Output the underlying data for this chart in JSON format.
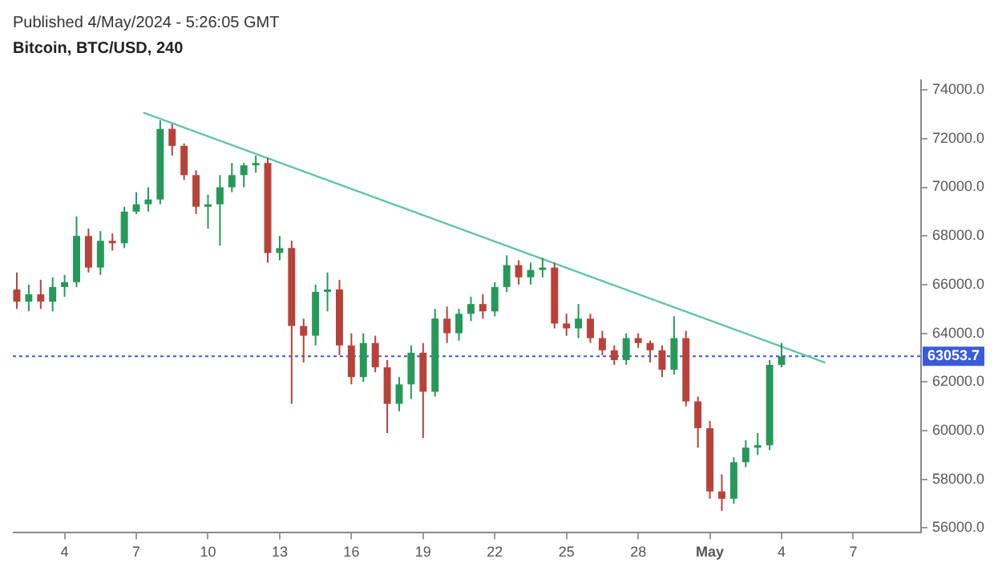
{
  "chart_data": {
    "type": "candlestick",
    "title": "Published 4/May/2024 - 5:26:05 GMT",
    "subtitle": "Bitcoin, BTC/USD, 240",
    "x": [
      "2024-04-02T00:00",
      "2024-04-02T12:00",
      "2024-04-03T00:00",
      "2024-04-03T12:00",
      "2024-04-04T00:00",
      "2024-04-04T12:00",
      "2024-04-05T00:00",
      "2024-04-05T12:00",
      "2024-04-06T00:00",
      "2024-04-06T12:00",
      "2024-04-07T00:00",
      "2024-04-07T12:00",
      "2024-04-08T00:00",
      "2024-04-08T12:00",
      "2024-04-09T00:00",
      "2024-04-09T12:00",
      "2024-04-10T00:00",
      "2024-04-10T12:00",
      "2024-04-11T00:00",
      "2024-04-11T12:00",
      "2024-04-12T00:00",
      "2024-04-12T12:00",
      "2024-04-13T00:00",
      "2024-04-13T12:00",
      "2024-04-14T00:00",
      "2024-04-14T12:00",
      "2024-04-15T00:00",
      "2024-04-15T12:00",
      "2024-04-16T00:00",
      "2024-04-16T12:00",
      "2024-04-17T00:00",
      "2024-04-17T12:00",
      "2024-04-18T00:00",
      "2024-04-18T12:00",
      "2024-04-19T00:00",
      "2024-04-19T12:00",
      "2024-04-20T00:00",
      "2024-04-20T12:00",
      "2024-04-21T00:00",
      "2024-04-21T12:00",
      "2024-04-22T00:00",
      "2024-04-22T12:00",
      "2024-04-23T00:00",
      "2024-04-23T12:00",
      "2024-04-24T00:00",
      "2024-04-24T12:00",
      "2024-04-25T00:00",
      "2024-04-25T12:00",
      "2024-04-26T00:00",
      "2024-04-26T12:00",
      "2024-04-27T00:00",
      "2024-04-27T12:00",
      "2024-04-28T00:00",
      "2024-04-28T12:00",
      "2024-04-29T00:00",
      "2024-04-29T12:00",
      "2024-04-30T00:00",
      "2024-04-30T12:00",
      "2024-05-01T00:00",
      "2024-05-01T12:00",
      "2024-05-02T00:00",
      "2024-05-02T12:00",
      "2024-05-03T00:00",
      "2024-05-03T12:00",
      "2024-05-04T00:00"
    ],
    "ohlc": [
      [
        65800,
        66500,
        65000,
        65300
      ],
      [
        65300,
        66000,
        64900,
        65600
      ],
      [
        65600,
        66200,
        65000,
        65300
      ],
      [
        65300,
        66300,
        64900,
        65900
      ],
      [
        65900,
        66400,
        65500,
        66100
      ],
      [
        66100,
        68800,
        65900,
        68000
      ],
      [
        68000,
        68300,
        66500,
        66700
      ],
      [
        66700,
        68200,
        66400,
        67800
      ],
      [
        67800,
        68100,
        67400,
        67700
      ],
      [
        67700,
        69200,
        67500,
        69000
      ],
      [
        69000,
        69800,
        68900,
        69300
      ],
      [
        69300,
        70000,
        69000,
        69500
      ],
      [
        69500,
        72750,
        69300,
        72400
      ],
      [
        72400,
        72600,
        71300,
        71700
      ],
      [
        71700,
        71800,
        70300,
        70500
      ],
      [
        70500,
        70700,
        68900,
        69200
      ],
      [
        69200,
        69700,
        68300,
        69300
      ],
      [
        69300,
        70500,
        67600,
        70000
      ],
      [
        70000,
        71000,
        69800,
        70500
      ],
      [
        70500,
        71000,
        70000,
        70900
      ],
      [
        70900,
        71300,
        70600,
        71000
      ],
      [
        71000,
        71200,
        66900,
        67300
      ],
      [
        67300,
        68000,
        67000,
        67500
      ],
      [
        67500,
        67800,
        61100,
        64300
      ],
      [
        64300,
        64600,
        62800,
        63900
      ],
      [
        63900,
        66000,
        63500,
        65700
      ],
      [
        65700,
        66500,
        64900,
        65800
      ],
      [
        65800,
        66200,
        63100,
        63500
      ],
      [
        63500,
        64000,
        61900,
        62200
      ],
      [
        62200,
        64000,
        62000,
        63600
      ],
      [
        63600,
        63900,
        62400,
        62600
      ],
      [
        62600,
        62900,
        59900,
        61100
      ],
      [
        61100,
        62200,
        60800,
        61900
      ],
      [
        61900,
        63500,
        61300,
        63200
      ],
      [
        63200,
        63600,
        59700,
        61600
      ],
      [
        61600,
        65000,
        61400,
        64600
      ],
      [
        64600,
        65100,
        63600,
        64000
      ],
      [
        64000,
        65000,
        63700,
        64800
      ],
      [
        64800,
        65500,
        64500,
        65200
      ],
      [
        65200,
        65600,
        64600,
        64900
      ],
      [
        64900,
        66100,
        64700,
        65900
      ],
      [
        65900,
        67200,
        65700,
        66800
      ],
      [
        66800,
        67000,
        66000,
        66300
      ],
      [
        66300,
        66900,
        66000,
        66600
      ],
      [
        66600,
        67100,
        66300,
        66700
      ],
      [
        66700,
        66900,
        64200,
        64400
      ],
      [
        64400,
        64800,
        63900,
        64200
      ],
      [
        64200,
        65200,
        63800,
        64600
      ],
      [
        64600,
        64800,
        63600,
        63800
      ],
      [
        63800,
        64100,
        63100,
        63300
      ],
      [
        63300,
        63500,
        62700,
        62900
      ],
      [
        62900,
        64000,
        62700,
        63800
      ],
      [
        63800,
        64000,
        63400,
        63600
      ],
      [
        63600,
        63700,
        62800,
        63300
      ],
      [
        63300,
        63500,
        62200,
        62500
      ],
      [
        62500,
        64700,
        62300,
        63800
      ],
      [
        63800,
        64100,
        61000,
        61200
      ],
      [
        61200,
        61400,
        59300,
        60100
      ],
      [
        60100,
        60400,
        57200,
        57500
      ],
      [
        57500,
        58200,
        56700,
        57200
      ],
      [
        57200,
        58900,
        57000,
        58700
      ],
      [
        58700,
        59600,
        58500,
        59300
      ],
      [
        59300,
        59900,
        59000,
        59400
      ],
      [
        59400,
        62900,
        59200,
        62700
      ],
      [
        62700,
        63600,
        62600,
        63050
      ]
    ],
    "colors": [
      "#b8423a",
      "#26995a",
      "#b8423a",
      "#26995a",
      "#26995a",
      "#26995a",
      "#b8423a",
      "#26995a",
      "#b8423a",
      "#26995a",
      "#26995a",
      "#26995a",
      "#26995a",
      "#b8423a",
      "#b8423a",
      "#b8423a",
      "#26995a",
      "#26995a",
      "#26995a",
      "#26995a",
      "#26995a",
      "#b8423a",
      "#26995a",
      "#b8423a",
      "#b8423a",
      "#26995a",
      "#26995a",
      "#b8423a",
      "#b8423a",
      "#26995a",
      "#b8423a",
      "#b8423a",
      "#26995a",
      "#26995a",
      "#b8423a",
      "#26995a",
      "#b8423a",
      "#26995a",
      "#26995a",
      "#b8423a",
      "#26995a",
      "#26995a",
      "#b8423a",
      "#26995a",
      "#26995a",
      "#b8423a",
      "#b8423a",
      "#26995a",
      "#b8423a",
      "#b8423a",
      "#b8423a",
      "#26995a",
      "#b8423a",
      "#b8423a",
      "#b8423a",
      "#26995a",
      "#b8423a",
      "#b8423a",
      "#b8423a",
      "#b8423a",
      "#26995a",
      "#26995a",
      "#26995a",
      "#26995a",
      "#26995a"
    ],
    "series": [
      {
        "type": "line",
        "x": [
          "2024-04-07T07:00",
          "2024-05-05T20:00"
        ],
        "values": [
          73070,
          62790
        ],
        "color": "#5fc5a8"
      }
    ],
    "ref_lines": [
      {
        "axis": "y",
        "value": 63053.7,
        "label": "63053.7",
        "color": "#3a5bd9",
        "line_style": "dotted"
      }
    ],
    "xlim": [
      "2024-04-01T20:00",
      "2024-05-09T20:00"
    ],
    "xticks": [
      {
        "value": "2024-04-04",
        "label": "4"
      },
      {
        "value": "2024-04-07",
        "label": "7"
      },
      {
        "value": "2024-04-10",
        "label": "10"
      },
      {
        "value": "2024-04-13",
        "label": "13"
      },
      {
        "value": "2024-04-16",
        "label": "16"
      },
      {
        "value": "2024-04-19",
        "label": "19"
      },
      {
        "value": "2024-04-22",
        "label": "22"
      },
      {
        "value": "2024-04-25",
        "label": "25"
      },
      {
        "value": "2024-04-28",
        "label": "28"
      },
      {
        "value": "2024-05-01",
        "label": "May"
      },
      {
        "value": "2024-05-04",
        "label": "4"
      },
      {
        "value": "2024-05-07",
        "label": "7"
      }
    ],
    "ylim": [
      55800,
      74400
    ],
    "yticks": [
      {
        "value": 56000,
        "label": "56000.0"
      },
      {
        "value": 58000,
        "label": "58000.0"
      },
      {
        "value": 60000,
        "label": "60000.0"
      },
      {
        "value": 62000,
        "label": "62000.0"
      },
      {
        "value": 64000,
        "label": "64000.0"
      },
      {
        "value": 66000,
        "label": "66000.0"
      },
      {
        "value": 68000,
        "label": "68000.0"
      },
      {
        "value": 70000,
        "label": "70000.0"
      },
      {
        "value": 72000,
        "label": "72000.0"
      },
      {
        "value": 74000,
        "label": "74000.0"
      }
    ],
    "grid": false,
    "legend": false
  }
}
